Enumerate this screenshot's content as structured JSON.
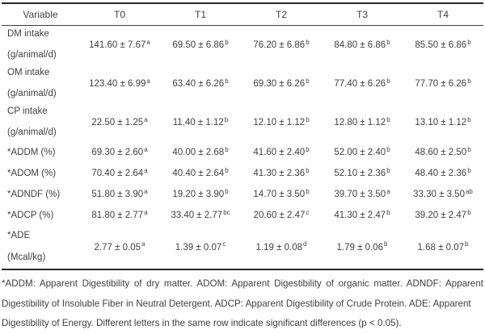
{
  "table": {
    "columns": [
      "Variable",
      "T0",
      "T1",
      "T2",
      "T3",
      "T4"
    ],
    "rows": [
      {
        "label1": "DM intake",
        "label2": "(g/animal/d)",
        "cells": [
          {
            "v": "141.60 ± 7.67",
            "s": "a"
          },
          {
            "v": "69.50 ± 6.86",
            "s": "b"
          },
          {
            "v": "76.20 ± 6.86",
            "s": "b"
          },
          {
            "v": "84.80 ± 6.86",
            "s": "b"
          },
          {
            "v": "85.50 ± 6.86",
            "s": "b"
          }
        ]
      },
      {
        "label1": "OM intake",
        "label2": "(g/animal/d)",
        "cells": [
          {
            "v": "123.40 ± 6.99",
            "s": "a"
          },
          {
            "v": "63.40 ± 6.26",
            "s": "b"
          },
          {
            "v": "69.30 ± 6.26",
            "s": "b"
          },
          {
            "v": "77.40 ± 6.26",
            "s": "b"
          },
          {
            "v": "77.70 ± 6.26",
            "s": "b"
          }
        ]
      },
      {
        "label1": "CP intake",
        "label2": "(g/animal/d)",
        "cells": [
          {
            "v": "22.50 ± 1.25",
            "s": "a"
          },
          {
            "v": "11.40 ± 1.12",
            "s": "b"
          },
          {
            "v": "12.10 ± 1.12",
            "s": "b"
          },
          {
            "v": "12.80 ± 1.12",
            "s": "b"
          },
          {
            "v": "13.10 ± 1.12",
            "s": "b"
          }
        ]
      },
      {
        "label1": "*ADDM (%)",
        "cells": [
          {
            "v": "69.30 ± 2.60",
            "s": "a"
          },
          {
            "v": "40.00 ± 2.68",
            "s": "b"
          },
          {
            "v": "41.60 ± 2.40",
            "s": "b"
          },
          {
            "v": "52.00 ± 2.40",
            "s": "b"
          },
          {
            "v": "48.60 ± 2.50",
            "s": "b"
          }
        ]
      },
      {
        "label1": "*ADOM (%)",
        "cells": [
          {
            "v": "70.40 ± 2.64",
            "s": "a"
          },
          {
            "v": "40.40 ± 2.64",
            "s": "b"
          },
          {
            "v": "41.30 ± 2.36",
            "s": "b"
          },
          {
            "v": "52.10 ± 2.36",
            "s": "b"
          },
          {
            "v": "48.40 ± 2.36",
            "s": "b"
          }
        ]
      },
      {
        "label1": "*ADNDF (%)",
        "cells": [
          {
            "v": "51.80 ± 3.90",
            "s": "a"
          },
          {
            "v": "19.20 ± 3.90",
            "s": "b"
          },
          {
            "v": "14.70 ± 3.50",
            "s": "b"
          },
          {
            "v": "39.70 ± 3.50",
            "s": "a"
          },
          {
            "v": "33.30 ± 3.50",
            "s": "ab"
          }
        ]
      },
      {
        "label1": "*ADCP (%)",
        "cells": [
          {
            "v": "81.80 ± 2.77",
            "s": "a"
          },
          {
            "v": "33.40 ± 2.77",
            "s": "bc"
          },
          {
            "v": "20.60 ± 2.47",
            "s": "c"
          },
          {
            "v": "41.30 ± 2.47",
            "s": "b"
          },
          {
            "v": "39.20 ± 2.47",
            "s": "b"
          }
        ]
      },
      {
        "label1": "*ADE",
        "label2": "(Mcal/kg)",
        "cells": [
          {
            "v": "2.77 ± 0.05",
            "s": "a"
          },
          {
            "v": "1.39 ± 0.07",
            "s": "c"
          },
          {
            "v": "1.19 ± 0.08",
            "s": "d"
          },
          {
            "v": "1.79 ± 0.06",
            "s": "b"
          },
          {
            "v": "1.68 ± 0.07",
            "s": "b"
          }
        ]
      }
    ]
  },
  "footnote": {
    "line1": "*ADDM: Apparent Digestibility of dry matter. ADOM: Apparent Digestibility of organic matter. ADNDF: Apparent",
    "line2": "Digestibility of Insoluble Fiber in Neutral Detergent. ADCP: Apparent Digestibility of Crude Protein. ADE: Apparent",
    "line3": "Digestibility of Energy. Different letters in the same row indicate significant differences (p < 0.05)."
  },
  "colors": {
    "text": "#3f3f3f",
    "rule": "#272727",
    "background": "#ffffff"
  }
}
